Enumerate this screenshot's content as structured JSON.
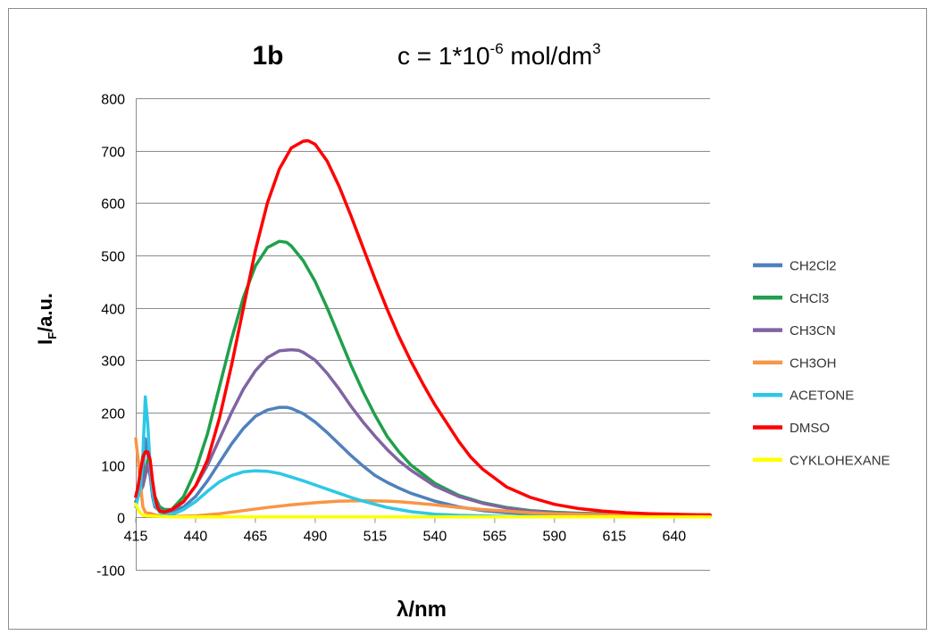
{
  "chart_data": {
    "type": "line",
    "title": "1b",
    "subtitle_main": "c = 1*10",
    "subtitle_exp1": "-6",
    "subtitle_mid": " mol/dm",
    "subtitle_exp2": "3",
    "xlabel": "λ/nm",
    "ylabel_main": "I",
    "ylabel_sub": "F",
    "ylabel_rest": "/a.u.",
    "xlim": [
      415,
      655
    ],
    "ylim": [
      -100,
      800
    ],
    "x_ticks": [
      "415",
      "440",
      "465",
      "490",
      "515",
      "540",
      "565",
      "590",
      "615",
      "640"
    ],
    "y_ticks": [
      "-100",
      "0",
      "100",
      "200",
      "300",
      "400",
      "500",
      "600",
      "700",
      "800"
    ],
    "grid": "horizontal",
    "legend_position": "right",
    "series": [
      {
        "name": "CH2Cl2",
        "color": "#4f81bd",
        "x": [
          415,
          417,
          418,
          419,
          420,
          421,
          422,
          423,
          425,
          427,
          430,
          435,
          440,
          445,
          450,
          455,
          460,
          465,
          470,
          475,
          478,
          480,
          485,
          490,
          495,
          500,
          505,
          510,
          515,
          520,
          525,
          530,
          540,
          550,
          560,
          570,
          580,
          590,
          600,
          610,
          620,
          630,
          640,
          650,
          655
        ],
        "y": [
          30,
          50,
          90,
          150,
          120,
          80,
          40,
          20,
          12,
          10,
          12,
          20,
          40,
          70,
          105,
          140,
          170,
          193,
          205,
          210,
          210,
          208,
          198,
          182,
          162,
          140,
          118,
          98,
          80,
          67,
          56,
          46,
          31,
          20,
          13,
          9,
          7,
          6,
          5,
          5,
          4,
          4,
          4,
          4,
          4
        ]
      },
      {
        "name": "CHCl3",
        "color": "#1fa04b",
        "x": [
          415,
          418,
          420,
          421,
          423,
          425,
          427,
          430,
          435,
          440,
          445,
          450,
          455,
          460,
          465,
          470,
          475,
          478,
          480,
          485,
          490,
          495,
          500,
          505,
          510,
          515,
          520,
          525,
          530,
          540,
          550,
          560,
          570,
          580,
          590,
          600,
          610,
          620,
          630,
          640,
          650,
          655
        ],
        "y": [
          40,
          60,
          110,
          90,
          40,
          20,
          15,
          15,
          40,
          90,
          160,
          250,
          340,
          420,
          480,
          515,
          527,
          525,
          518,
          490,
          450,
          400,
          345,
          290,
          240,
          195,
          155,
          125,
          100,
          65,
          42,
          28,
          19,
          13,
          10,
          8,
          7,
          6,
          5,
          5,
          4,
          4
        ]
      },
      {
        "name": "CH3CN",
        "color": "#8064a2",
        "x": [
          415,
          418,
          420,
          421,
          423,
          425,
          427,
          430,
          435,
          440,
          445,
          450,
          455,
          460,
          465,
          470,
          475,
          480,
          483,
          485,
          490,
          495,
          500,
          505,
          510,
          515,
          520,
          525,
          530,
          540,
          550,
          560,
          570,
          580,
          590,
          600,
          610,
          620,
          630,
          640,
          650,
          655
        ],
        "y": [
          30,
          60,
          100,
          80,
          35,
          15,
          10,
          12,
          30,
          60,
          100,
          150,
          200,
          245,
          280,
          305,
          318,
          320,
          319,
          315,
          300,
          275,
          245,
          212,
          182,
          155,
          130,
          108,
          90,
          60,
          40,
          27,
          18,
          12,
          9,
          7,
          6,
          5,
          5,
          4,
          4,
          4
        ]
      },
      {
        "name": "CH3OH",
        "color": "#f79646",
        "x": [
          415,
          416,
          417,
          418,
          419,
          420,
          421,
          423,
          425,
          430,
          440,
          450,
          460,
          470,
          480,
          490,
          500,
          510,
          520,
          525,
          530,
          540,
          550,
          560,
          570,
          580,
          590,
          600,
          610,
          620,
          630,
          640,
          650,
          655
        ],
        "y": [
          150,
          110,
          60,
          20,
          10,
          8,
          8,
          5,
          3,
          2,
          3,
          7,
          13,
          19,
          24,
          28,
          31,
          32,
          31,
          30,
          28,
          24,
          19,
          15,
          12,
          9,
          7,
          6,
          5,
          4,
          4,
          3,
          3,
          3
        ]
      },
      {
        "name": "ACETONE",
        "color": "#2dc8e6",
        "x": [
          415,
          417,
          418,
          419,
          420,
          421,
          422,
          423,
          425,
          427,
          430,
          435,
          440,
          445,
          450,
          455,
          460,
          465,
          470,
          475,
          480,
          485,
          490,
          495,
          500,
          505,
          510,
          515,
          520,
          525,
          530,
          540,
          550,
          560,
          570,
          580,
          600,
          620,
          640,
          655
        ],
        "y": [
          20,
          60,
          120,
          230,
          180,
          100,
          50,
          25,
          10,
          5,
          5,
          15,
          30,
          50,
          68,
          80,
          87,
          89,
          88,
          84,
          77,
          70,
          62,
          54,
          46,
          38,
          31,
          25,
          19,
          15,
          11,
          6,
          4,
          3,
          2,
          2,
          1,
          1,
          1,
          1
        ]
      },
      {
        "name": "DMSO",
        "color": "#ff0000",
        "x": [
          415,
          416,
          417,
          418,
          419,
          420,
          421,
          422,
          423,
          424,
          425,
          427,
          430,
          435,
          440,
          445,
          450,
          455,
          460,
          465,
          470,
          475,
          480,
          485,
          487,
          490,
          495,
          500,
          505,
          510,
          515,
          520,
          525,
          530,
          535,
          540,
          545,
          550,
          555,
          560,
          570,
          580,
          590,
          600,
          610,
          620,
          630,
          640,
          650,
          655
        ],
        "y": [
          40,
          60,
          90,
          115,
          125,
          125,
          110,
          70,
          40,
          20,
          12,
          10,
          15,
          30,
          60,
          110,
          190,
          290,
          400,
          510,
          600,
          665,
          705,
          718,
          719,
          712,
          680,
          632,
          575,
          515,
          455,
          398,
          345,
          298,
          255,
          215,
          180,
          145,
          115,
          92,
          58,
          38,
          25,
          17,
          12,
          9,
          7,
          6,
          5,
          5
        ]
      },
      {
        "name": "CYKLOHEXANE",
        "color": "#ffff00",
        "x": [
          415,
          416,
          417,
          418,
          420,
          425,
          430,
          440,
          450,
          460,
          470,
          480,
          500,
          520,
          540,
          560,
          580,
          600,
          620,
          640,
          655
        ],
        "y": [
          25,
          15,
          8,
          4,
          3,
          2,
          1,
          1,
          1,
          1,
          1,
          1,
          1,
          1,
          1,
          1,
          1,
          1,
          1,
          1,
          1
        ]
      }
    ]
  }
}
